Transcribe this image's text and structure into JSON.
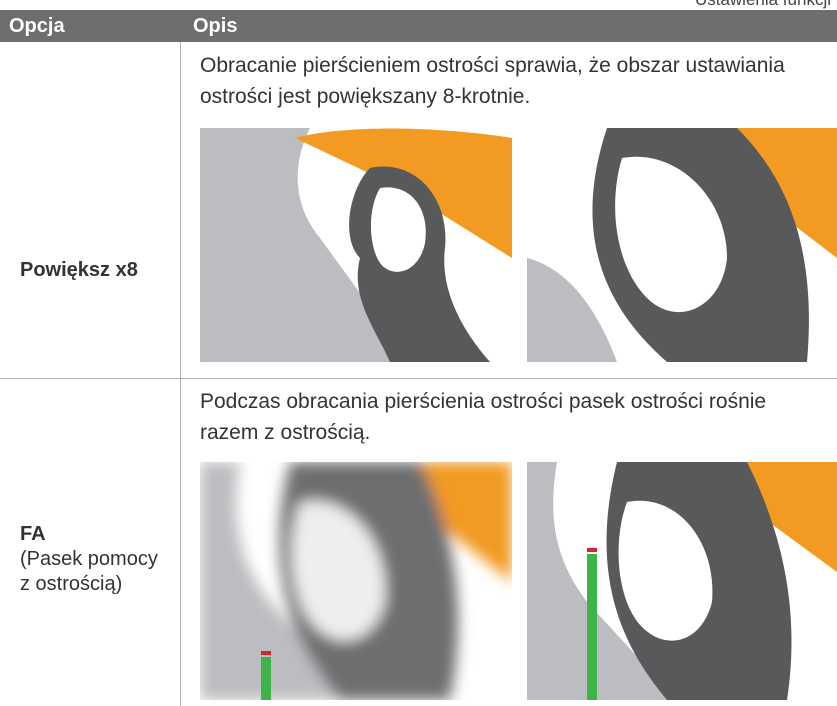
{
  "header": {
    "title": "Ustawienia funkcji"
  },
  "table": {
    "headers": [
      "Opcja",
      "Opis"
    ],
    "rows": [
      {
        "option": "Powiększ x8",
        "description": "Obracanie pierścieniem ostrości sprawia, że obszar ustawiania ostrości jest powiększany 8-krotnie."
      },
      {
        "option": "FA",
        "option_note": "(Pasek pomocy z ostrością)",
        "description": "Podczas obracania pierścienia ostrości pasek ostrości rośnie razem z ostrością."
      }
    ]
  }
}
